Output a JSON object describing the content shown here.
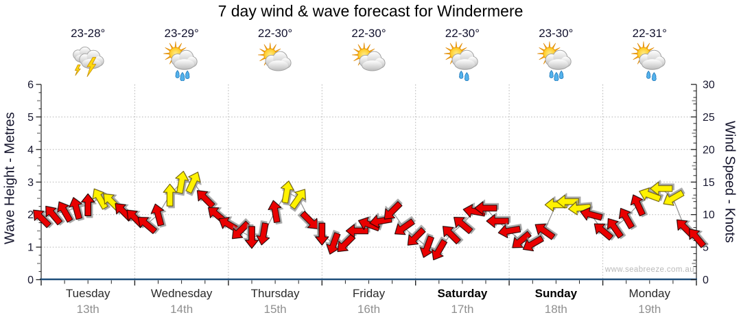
{
  "title": "7 day wind & wave forecast for Windermere",
  "watermark": "www.seabreeze.com.au",
  "days": [
    {
      "name": "Tuesday",
      "date": "13th",
      "temp": "23-28°",
      "icon": "storm",
      "weekend": false
    },
    {
      "name": "Wednesday",
      "date": "14th",
      "temp": "23-29°",
      "icon": "sun-cloud-rain",
      "weekend": false
    },
    {
      "name": "Thursday",
      "date": "15th",
      "temp": "22-30°",
      "icon": "sun-cloud",
      "weekend": false
    },
    {
      "name": "Friday",
      "date": "16th",
      "temp": "22-30°",
      "icon": "sun-cloud",
      "weekend": false
    },
    {
      "name": "Saturday",
      "date": "17th",
      "temp": "22-30°",
      "icon": "sun-cloud-drizzle",
      "weekend": true
    },
    {
      "name": "Sunday",
      "date": "18th",
      "temp": "23-30°",
      "icon": "sun-cloud-rain",
      "weekend": true
    },
    {
      "name": "Monday",
      "date": "19th",
      "temp": "22-31°",
      "icon": "sun-cloud-drizzle",
      "weekend": false
    }
  ],
  "chart_data": {
    "type": "line",
    "subtype": "wind-arrow-timeseries",
    "left_axis": {
      "label": "Wave Height - Metres",
      "min": 0,
      "max": 6,
      "ticks": [
        0,
        1,
        2,
        3,
        4,
        5,
        6
      ]
    },
    "right_axis": {
      "label": "Wind Speed - Knots",
      "min": 0,
      "max": 30,
      "ticks": [
        0,
        5,
        10,
        15,
        20,
        25,
        30
      ]
    },
    "x_axis": {
      "categories": [
        "Tuesday 13th",
        "Wednesday 14th",
        "Thursday 15th",
        "Friday 16th",
        "Saturday 17th",
        "Sunday 18th",
        "Monday 19th"
      ],
      "hours_per_day": 24,
      "minor_tick_hours": 6
    },
    "grid": {
      "h_lines_knots": [
        5,
        10,
        15,
        20,
        25
      ],
      "v_lines_at_day_boundaries": true,
      "style": "dotted"
    },
    "wave_height_metres": {
      "constant": 0
    },
    "wind_series_note": "t=hours from Tuesday 00:00; kt=wind speed in knots; dir=screen heading degrees (0=up,90=right); c=arrow colour r=red y=yellow",
    "wind_arrows": [
      [
        0,
        9.5,
        315,
        "r"
      ],
      [
        3,
        10,
        320,
        "r"
      ],
      [
        6,
        10.5,
        330,
        "r"
      ],
      [
        9,
        11,
        345,
        "r"
      ],
      [
        12,
        11.5,
        0,
        "r"
      ],
      [
        15,
        12.5,
        330,
        "y"
      ],
      [
        18,
        12,
        315,
        "y"
      ],
      [
        21,
        10.5,
        315,
        "r"
      ],
      [
        24,
        9.5,
        315,
        "r"
      ],
      [
        27,
        8.5,
        310,
        "r"
      ],
      [
        30,
        10,
        345,
        "r"
      ],
      [
        33,
        13,
        0,
        "y"
      ],
      [
        36,
        15,
        10,
        "y"
      ],
      [
        39,
        15,
        25,
        "y"
      ],
      [
        42,
        12.5,
        315,
        "r"
      ],
      [
        45,
        10,
        310,
        "r"
      ],
      [
        48,
        8.5,
        300,
        "r"
      ],
      [
        51,
        7.5,
        225,
        "r"
      ],
      [
        54,
        6.5,
        180,
        "r"
      ],
      [
        57,
        7,
        190,
        "r"
      ],
      [
        60,
        10.5,
        350,
        "r"
      ],
      [
        63,
        13.5,
        10,
        "y"
      ],
      [
        66,
        12.5,
        35,
        "y"
      ],
      [
        69,
        9,
        135,
        "r"
      ],
      [
        72,
        7,
        180,
        "r"
      ],
      [
        75,
        5.5,
        200,
        "r"
      ],
      [
        78,
        5.5,
        225,
        "r"
      ],
      [
        81,
        7.5,
        270,
        "r"
      ],
      [
        84,
        8.5,
        290,
        "r"
      ],
      [
        87,
        9,
        260,
        "r"
      ],
      [
        90,
        10.5,
        225,
        "r"
      ],
      [
        93,
        8,
        235,
        "r"
      ],
      [
        96,
        6.5,
        225,
        "r"
      ],
      [
        99,
        5,
        200,
        "r"
      ],
      [
        102,
        4.5,
        210,
        "r"
      ],
      [
        105,
        7,
        315,
        "r"
      ],
      [
        108,
        8.5,
        310,
        "r"
      ],
      [
        111,
        10.5,
        280,
        "r"
      ],
      [
        114,
        11,
        270,
        "r"
      ],
      [
        117,
        9,
        270,
        "r"
      ],
      [
        120,
        7.5,
        260,
        "r"
      ],
      [
        123,
        6,
        230,
        "r"
      ],
      [
        126,
        5.5,
        240,
        "r"
      ],
      [
        129,
        7.5,
        305,
        "r"
      ],
      [
        132,
        11.5,
        270,
        "y"
      ],
      [
        135,
        12,
        270,
        "y"
      ],
      [
        138,
        11,
        265,
        "y"
      ],
      [
        141,
        10,
        285,
        "r"
      ],
      [
        144,
        7.5,
        310,
        "r"
      ],
      [
        147,
        8,
        325,
        "r"
      ],
      [
        150,
        9.5,
        330,
        "r"
      ],
      [
        153,
        11.5,
        335,
        "r"
      ],
      [
        156,
        13,
        290,
        "y"
      ],
      [
        159,
        14,
        270,
        "y"
      ],
      [
        162,
        12.5,
        240,
        "y"
      ],
      [
        165,
        8,
        315,
        "r"
      ],
      [
        168,
        6.5,
        320,
        "r"
      ]
    ]
  },
  "colors": {
    "arrow_red": "#e90000",
    "arrow_yellow": "#fff200",
    "wave_line": "#1d4e7b",
    "wind_line": "#8f8f8f",
    "grid": "#b5b5b5",
    "axis_line": "#222222",
    "axis_text": "#16162e",
    "day_text": "#2a2a2a",
    "date_text": "#8f8f8f",
    "title_text": "#000000",
    "watermark_text": "#b9b9b9"
  }
}
